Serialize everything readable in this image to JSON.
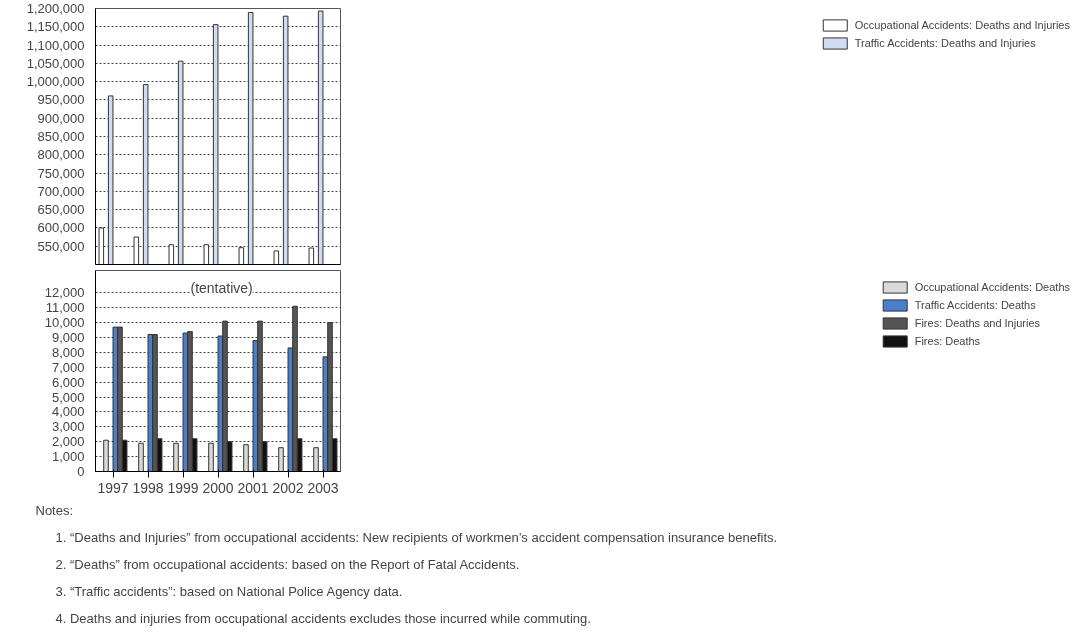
{
  "chart_data": [
    {
      "type": "bar",
      "categories": [
        "1997",
        "1998",
        "1999",
        "2000",
        "2001",
        "2002",
        "2003"
      ],
      "ylim": [
        500000,
        1200000
      ],
      "yticks": [
        {
          "value": 550000,
          "label": "550,000"
        },
        {
          "value": 600000,
          "label": "600,000"
        },
        {
          "value": 650000,
          "label": "650,000"
        },
        {
          "value": 700000,
          "label": "700,000"
        },
        {
          "value": 750000,
          "label": "750,000"
        },
        {
          "value": 800000,
          "label": "800,000"
        },
        {
          "value": 850000,
          "label": "850,000"
        },
        {
          "value": 900000,
          "label": "900,000"
        },
        {
          "value": 950000,
          "label": "950,000"
        },
        {
          "value": 1000000,
          "label": "1,000,000"
        },
        {
          "value": 1050000,
          "label": "1,050,000"
        },
        {
          "value": 1100000,
          "label": "1,100,000"
        },
        {
          "value": 1150000,
          "label": "1,150,000"
        },
        {
          "value": 1200000,
          "label": "1,200,000"
        }
      ],
      "grid": "y",
      "tick_labels": "y",
      "legend": "right",
      "series": [
        {
          "name": "Occupational Accidents: Deaths and Injuries",
          "color": "#ffffff",
          "values": [
            600000,
            575000,
            554000,
            554000,
            546000,
            537000,
            545000
          ]
        },
        {
          "name": "Traffic Accidents: Deaths and Injuries",
          "color": "#d0ddf0",
          "values": [
            961000,
            992000,
            1056000,
            1156000,
            1189000,
            1179000,
            1193000
          ]
        }
      ]
    },
    {
      "type": "bar",
      "categories": [
        "1997",
        "1998",
        "1999",
        "2000",
        "2001",
        "2002",
        "2003"
      ],
      "ylim": [
        0,
        13500
      ],
      "yticks": [
        0,
        {
          "value": 1000,
          "label": "1,000"
        },
        {
          "value": 2000,
          "label": "2,000"
        },
        {
          "value": 3000,
          "label": "3,000"
        },
        {
          "value": 4000,
          "label": "4,000"
        },
        {
          "value": 5000,
          "label": "5,000"
        },
        {
          "value": 6000,
          "label": "6,000"
        },
        {
          "value": 7000,
          "label": "7,000"
        },
        {
          "value": 8000,
          "label": "8,000"
        },
        {
          "value": 9000,
          "label": "9,000"
        },
        {
          "value": 10000,
          "label": "10,000"
        },
        {
          "value": 11000,
          "label": "11,000"
        },
        {
          "value": 12000,
          "label": "12,000"
        }
      ],
      "grid": "y",
      "legend": "right",
      "series": [
        {
          "name": "Occupational Accidents: Deaths",
          "color": "#d9d9d9",
          "values": [
            2100,
            1900,
            1900,
            1900,
            1800,
            1600,
            1600
          ]
        },
        {
          "name": "Traffic Accidents: Deaths",
          "color": "#4a7fcb",
          "values": [
            9700,
            9200,
            9300,
            9100,
            8800,
            8300,
            7700
          ]
        },
        {
          "name": "Fires: Deaths and Injuries",
          "color": "#555555",
          "values": [
            9700,
            9200,
            9400,
            10100,
            10100,
            11100,
            10000
          ]
        },
        {
          "name": "Fires: Deaths",
          "color": "#111111",
          "values": [
            2100,
            2200,
            2200,
            2000,
            2000,
            2200,
            2200
          ]
        }
      ],
      "annotations": [
        "(tentative)",
        "Notes:",
        "1. “Deaths and Injuries” from occupational accidents: New recipients of workmen’s accident compensation insurance benefits.",
        "2. “Deaths” from occupational accidents: based on the Report of Fatal Accidents.",
        "3. “Traffic accidents”: based on National Police Agency data.",
        "4. Deaths and injuries from occupational accidents excludes those incurred while commuting."
      ]
    }
  ]
}
